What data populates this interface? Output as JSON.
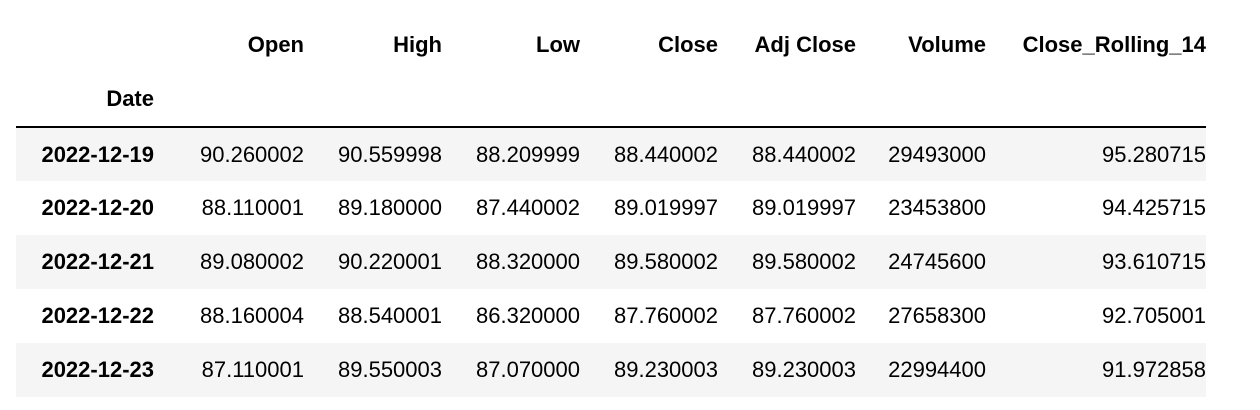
{
  "table": {
    "columns": [
      "Open",
      "High",
      "Low",
      "Close",
      "Adj Close",
      "Volume",
      "Close_Rolling_14"
    ],
    "index_name": "Date",
    "rows": [
      {
        "index": "2022-12-19",
        "values": [
          "90.260002",
          "90.559998",
          "88.209999",
          "88.440002",
          "88.440002",
          "29493000",
          "95.280715"
        ]
      },
      {
        "index": "2022-12-20",
        "values": [
          "88.110001",
          "89.180000",
          "87.440002",
          "89.019997",
          "89.019997",
          "23453800",
          "94.425715"
        ]
      },
      {
        "index": "2022-12-21",
        "values": [
          "89.080002",
          "90.220001",
          "88.320000",
          "89.580002",
          "89.580002",
          "24745600",
          "93.610715"
        ]
      },
      {
        "index": "2022-12-22",
        "values": [
          "88.160004",
          "88.540001",
          "86.320000",
          "87.760002",
          "87.760002",
          "27658300",
          "92.705001"
        ]
      },
      {
        "index": "2022-12-23",
        "values": [
          "87.110001",
          "89.550003",
          "87.070000",
          "89.230003",
          "89.230003",
          "22994400",
          "91.972858"
        ]
      }
    ]
  }
}
